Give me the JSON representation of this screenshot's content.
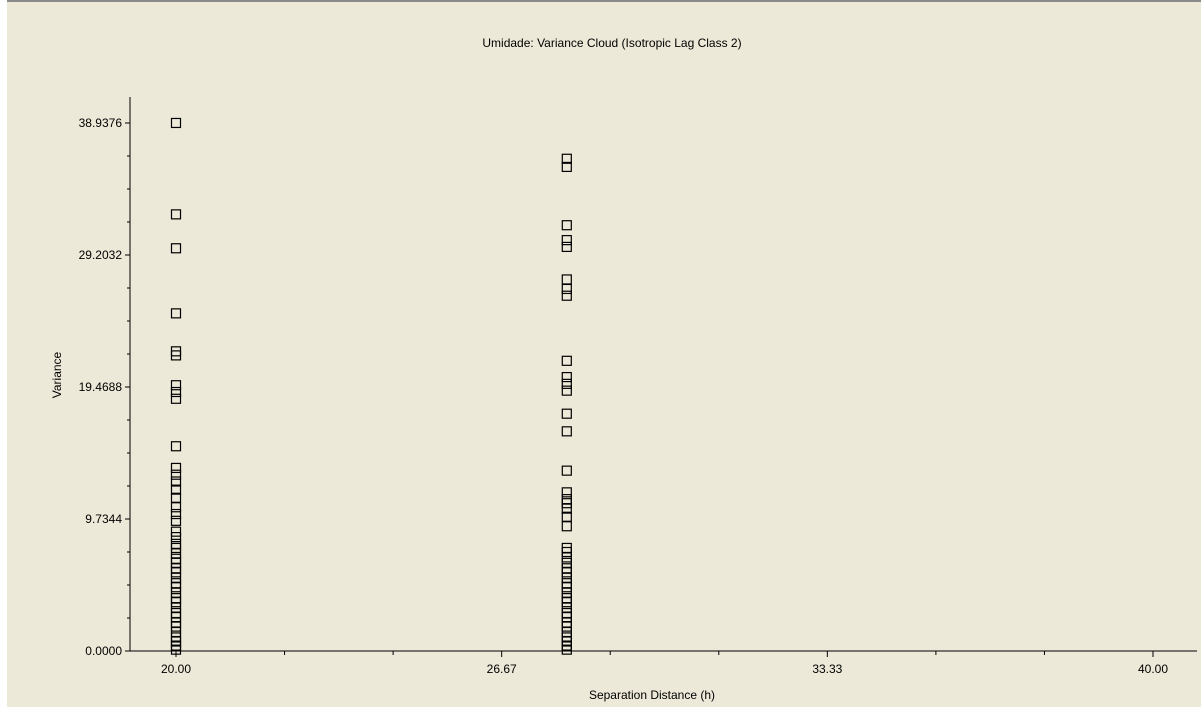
{
  "chart_data": {
    "type": "scatter",
    "title": "Umidade: Variance Cloud (Isotropic Lag Class 2)",
    "xlabel": "Separation Distance (h)",
    "ylabel": "Variance",
    "xlim": [
      20.0,
      40.0
    ],
    "ylim": [
      0.0,
      38.9376
    ],
    "x_ticks": [
      "20.00",
      "26.67",
      "33.33",
      "40.00"
    ],
    "y_ticks": [
      "0.0000",
      "9.7344",
      "19.4688",
      "29.2032",
      "38.9376"
    ],
    "marker": "hollow-square",
    "grid": false,
    "series": [
      {
        "x": 20.0,
        "y": [
          38.94,
          32.2,
          29.7,
          24.9,
          22.1,
          21.8,
          19.6,
          19.1,
          18.6,
          15.1,
          13.5,
          13.0,
          12.5,
          11.9,
          11.3,
          10.6,
          10.1,
          9.6,
          8.8,
          8.4,
          7.9,
          7.6,
          7.2,
          6.8,
          6.5,
          6.1,
          5.8,
          5.4,
          5.0,
          4.7,
          4.3,
          3.9,
          3.6,
          3.2,
          2.8,
          2.5,
          2.1,
          1.8,
          1.4,
          1.0,
          0.7,
          0.4,
          0.1
        ]
      },
      {
        "x": 28.0,
        "y": [
          36.3,
          35.7,
          31.4,
          30.3,
          29.8,
          27.4,
          26.7,
          26.2,
          21.4,
          20.2,
          19.7,
          19.2,
          17.5,
          16.2,
          13.3,
          11.7,
          11.2,
          10.9,
          10.5,
          9.9,
          9.2,
          7.6,
          7.3,
          6.9,
          6.5,
          6.1,
          5.8,
          5.4,
          5.0,
          4.7,
          4.3,
          3.9,
          3.6,
          3.2,
          2.8,
          2.5,
          2.1,
          1.8,
          1.4,
          1.0,
          0.7,
          0.4,
          0.1
        ]
      }
    ]
  }
}
